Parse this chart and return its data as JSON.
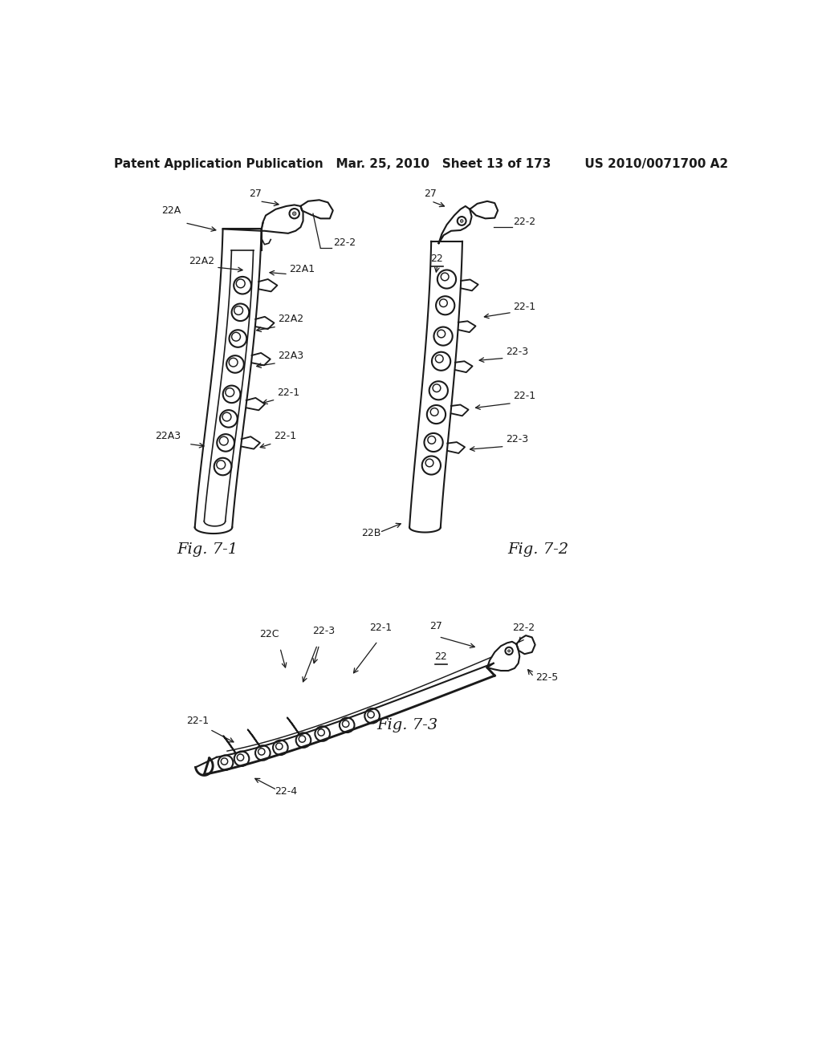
{
  "background_color": "#ffffff",
  "header_text": "Patent Application Publication   Mar. 25, 2010   Sheet 13 of 173        US 2010/0071700 A2",
  "header_fontsize": 11,
  "fig71_label": "Fig. 7-1",
  "fig72_label": "Fig. 7-2",
  "fig73_label": "Fig. 7-3",
  "line_color": "#1a1a1a",
  "line_width": 1.5,
  "annotation_fontsize": 9
}
